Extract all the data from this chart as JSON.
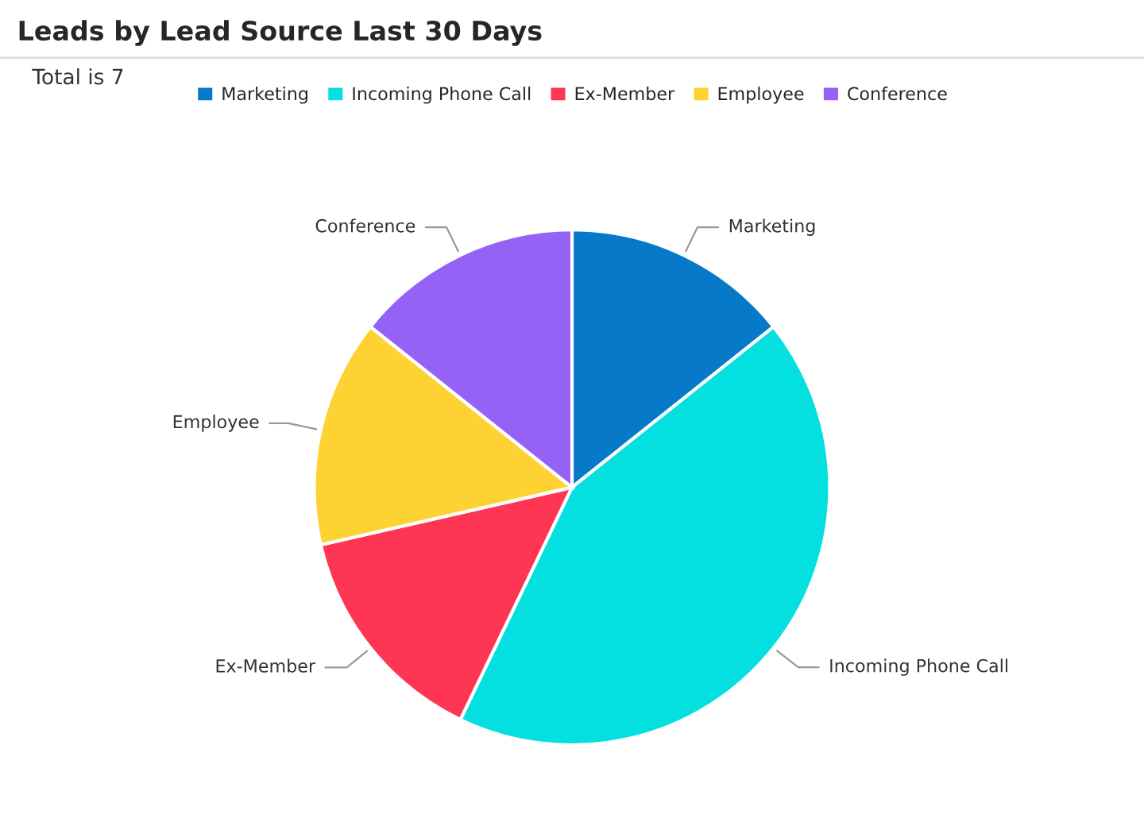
{
  "chart_data": {
    "type": "pie",
    "title": "Leads by Lead Source Last 30 Days",
    "annotations": [
      "Total is 7"
    ],
    "categories": [
      "Marketing",
      "Incoming Phone Call",
      "Ex-Member",
      "Employee",
      "Conference"
    ],
    "values": [
      14.29,
      42.84,
      14.29,
      14.29,
      14.29
    ],
    "colors": [
      "#0779c9",
      "#04e0e0",
      "#fe3653",
      "#ffd233",
      "#9562f6"
    ],
    "legend": "top"
  }
}
